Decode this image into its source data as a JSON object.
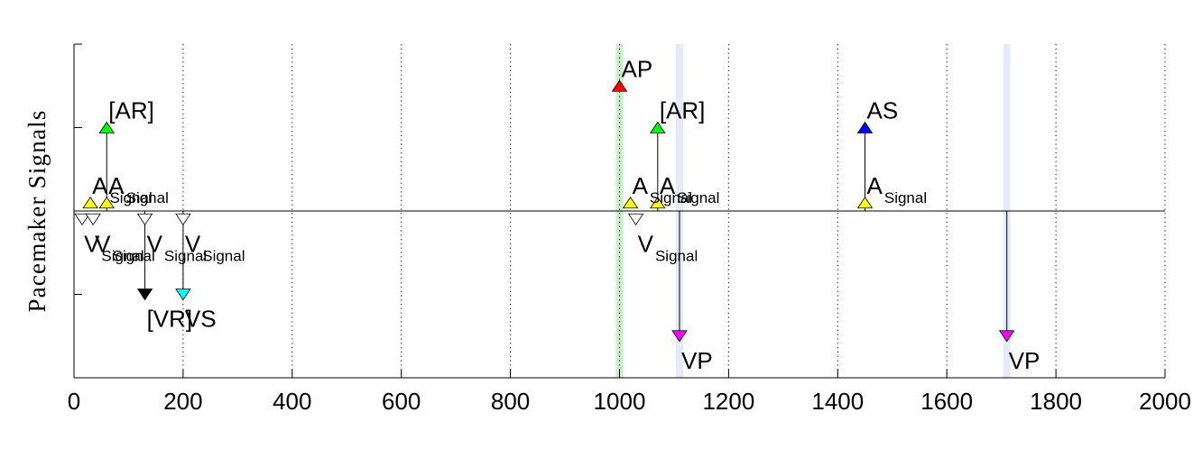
{
  "chart_data": {
    "type": "event-timeline",
    "ylabel": "Pacemaker  Signals",
    "xlim": [
      0,
      2000
    ],
    "ylim": [
      -2,
      2
    ],
    "x_ticks": [
      0,
      200,
      400,
      600,
      800,
      1000,
      1200,
      1400,
      1600,
      1800,
      2000
    ],
    "grid": "vertical-dotted",
    "baseline_y": 0,
    "highlight_bands": [
      {
        "x": 1000,
        "color": "#c8f0c8"
      },
      {
        "x": 1110,
        "color": "#e6eaf8"
      },
      {
        "x": 1710,
        "color": "#e6eaf8"
      }
    ],
    "events": [
      {
        "x": 30,
        "y": 0.1,
        "marker": "up",
        "color": "#ffff00",
        "label": "A",
        "subscript": "Signal"
      },
      {
        "x": 60,
        "y": 0.1,
        "marker": "up",
        "color": "#ffff00",
        "label": "A",
        "subscript": "Signal"
      },
      {
        "x": 60,
        "y": 1.0,
        "marker": "up",
        "color": "#00ff00",
        "label": "[AR]",
        "subscript": ""
      },
      {
        "x": 15,
        "y": -0.1,
        "marker": "down",
        "color": "#ffffff",
        "label": "V",
        "subscript": "Signal"
      },
      {
        "x": 35,
        "y": -0.1,
        "marker": "down",
        "color": "#ffffff",
        "label": "V",
        "subscript": "Signal"
      },
      {
        "x": 130,
        "y": -0.1,
        "marker": "down",
        "color": "#ffffff",
        "label": "V",
        "subscript": "Signal"
      },
      {
        "x": 200,
        "y": -0.1,
        "marker": "down",
        "color": "#ffffff",
        "label": "V",
        "subscript": "Signal"
      },
      {
        "x": 130,
        "y": -1.0,
        "marker": "down",
        "color": "#000000",
        "label": "[VR]",
        "subscript": ""
      },
      {
        "x": 200,
        "y": -1.0,
        "marker": "down",
        "color": "#00ffff",
        "label": "VS",
        "subscript": ""
      },
      {
        "x": 1000,
        "y": 1.5,
        "marker": "up",
        "color": "#ff0000",
        "label": "AP",
        "subscript": ""
      },
      {
        "x": 1020,
        "y": 0.1,
        "marker": "up",
        "color": "#ffff00",
        "label": "A",
        "subscript": "Signal"
      },
      {
        "x": 1070,
        "y": 0.1,
        "marker": "up",
        "color": "#ffff00",
        "label": "A",
        "subscript": "Signal"
      },
      {
        "x": 1070,
        "y": 1.0,
        "marker": "up",
        "color": "#00ff00",
        "label": "[AR]",
        "subscript": ""
      },
      {
        "x": 1030,
        "y": -0.1,
        "marker": "down",
        "color": "#ffffff",
        "label": "V",
        "subscript": "Signal"
      },
      {
        "x": 1110,
        "y": -1.5,
        "marker": "down",
        "color": "#ff00ff",
        "label": "VP",
        "subscript": ""
      },
      {
        "x": 1450,
        "y": 1.0,
        "marker": "up",
        "color": "#0000ff",
        "label": "AS",
        "subscript": ""
      },
      {
        "x": 1450,
        "y": 0.1,
        "marker": "up",
        "color": "#ffff00",
        "label": "A",
        "subscript": "Signal"
      },
      {
        "x": 1710,
        "y": -1.5,
        "marker": "down",
        "color": "#ff00ff",
        "label": "VP",
        "subscript": ""
      }
    ],
    "stems": [
      {
        "x": 60,
        "from": 0,
        "to": 1.0
      },
      {
        "x": 130,
        "from": 0,
        "to": -1.0
      },
      {
        "x": 200,
        "from": 0,
        "to": -1.0
      },
      {
        "x": 1070,
        "from": 0,
        "to": 1.0
      },
      {
        "x": 1110,
        "from": 0,
        "to": -1.5
      },
      {
        "x": 1450,
        "from": 0,
        "to": 1.0
      },
      {
        "x": 1710,
        "from": 0,
        "to": -1.5
      }
    ]
  }
}
